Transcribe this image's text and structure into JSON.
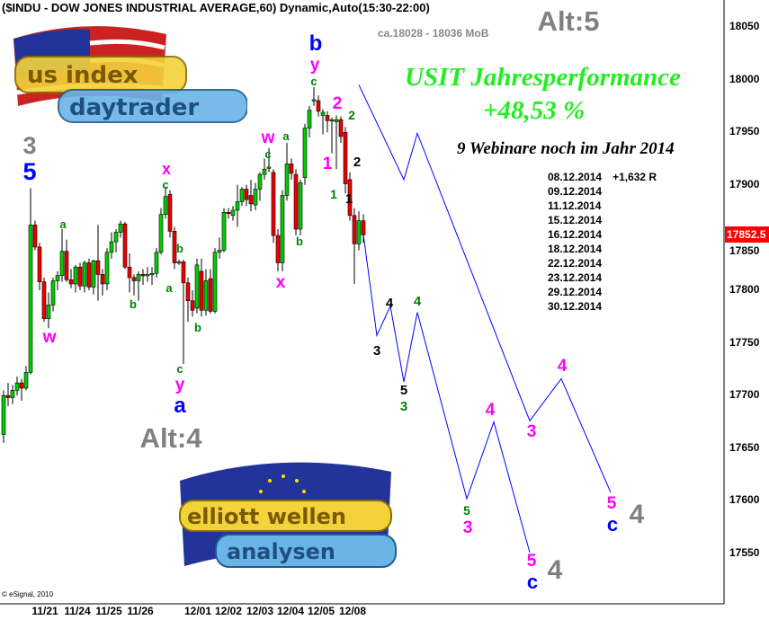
{
  "header": {
    "title": "($INDU - DOW JONES INDUSTRIAL AVERAGE,60) Dynamic,Auto(15:30-22:00)"
  },
  "annotations": {
    "mob": "ca.18028 - 18036 MoB",
    "performance_title": "USIT Jahresperformance",
    "performance_value": "+48,53 %",
    "webinar_note": "9 Webinare noch im Jahr 2014",
    "webinar_dates": [
      "08.12.2014",
      "09.12.2014",
      "11.12.2014",
      "15.12.2014",
      "16.12.2014",
      "18.12.2014",
      "22.12.2014",
      "23.12.2014",
      "29.12.2014",
      "30.12.2014"
    ],
    "webinar_result": "+1,632 R",
    "copyright": "© eSignal, 2010"
  },
  "logos": {
    "top": "us index daytrader",
    "bottom": "elliott wellen analysen"
  },
  "colors": {
    "up": "#00cc00",
    "down": "#ee0000",
    "projection": "#0000ff",
    "price_box": "#ff0000",
    "magenta": "#ff00ff",
    "green": "#008000",
    "blue": "#0000ff",
    "gray": "#808080",
    "black": "#000000"
  },
  "chart_data": {
    "type": "candlestick",
    "title": "($INDU - DOW JONES INDUSTRIAL AVERAGE,60) Dynamic,Auto(15:30-22:00)",
    "ylim": [
      17510,
      18075
    ],
    "y_ticks": [
      18050,
      18000,
      17950,
      17900,
      17850,
      17800,
      17750,
      17700,
      17650,
      17600,
      17550
    ],
    "x_tick_labels": [
      "11/21",
      "11/24",
      "11/25",
      "11/26",
      "12/01",
      "12/02",
      "12/03",
      "12/04",
      "12/05",
      "12/08"
    ],
    "last_price": "17852.5",
    "ohlc": [
      [
        17663,
        17705,
        17655,
        17700
      ],
      [
        17700,
        17712,
        17690,
        17698
      ],
      [
        17698,
        17710,
        17692,
        17705
      ],
      [
        17705,
        17718,
        17700,
        17712
      ],
      [
        17712,
        17716,
        17695,
        17707
      ],
      [
        17707,
        17728,
        17705,
        17722
      ],
      [
        17722,
        17897,
        17720,
        17862
      ],
      [
        17862,
        17866,
        17838,
        17841
      ],
      [
        17841,
        17845,
        17800,
        17808
      ],
      [
        17808,
        17812,
        17770,
        17773
      ],
      [
        17773,
        17798,
        17764,
        17786
      ],
      [
        17786,
        17812,
        17780,
        17809
      ],
      [
        17809,
        17818,
        17800,
        17814
      ],
      [
        17814,
        17858,
        17808,
        17837
      ],
      [
        17837,
        17848,
        17808,
        17810
      ],
      [
        17810,
        17820,
        17802,
        17806
      ],
      [
        17806,
        17824,
        17798,
        17822
      ],
      [
        17822,
        17826,
        17800,
        17804
      ],
      [
        17804,
        17828,
        17798,
        17826
      ],
      [
        17826,
        17830,
        17800,
        17803
      ],
      [
        17803,
        17829,
        17796,
        17828
      ],
      [
        17828,
        17862,
        17790,
        17815
      ],
      [
        17815,
        17820,
        17795,
        17806
      ],
      [
        17806,
        17840,
        17800,
        17836
      ],
      [
        17836,
        17855,
        17830,
        17846
      ],
      [
        17846,
        17858,
        17836,
        17855
      ],
      [
        17855,
        17866,
        17850,
        17863
      ],
      [
        17863,
        17865,
        17820,
        17822
      ],
      [
        17822,
        17835,
        17798,
        17812
      ],
      [
        17812,
        17815,
        17795,
        17809
      ],
      [
        17809,
        17818,
        17790,
        17815
      ],
      [
        17815,
        17820,
        17805,
        17814
      ],
      [
        17814,
        17822,
        17808,
        17815
      ],
      [
        17815,
        17822,
        17805,
        17816
      ],
      [
        17816,
        17840,
        17812,
        17836
      ],
      [
        17836,
        17878,
        17834,
        17872
      ],
      [
        17872,
        17898,
        17868,
        17889
      ],
      [
        17891,
        17895,
        17850,
        17856
      ],
      [
        17856,
        17860,
        17820,
        17826
      ],
      [
        17826,
        17829,
        17824,
        17827
      ],
      [
        17827,
        17829,
        17730,
        17807
      ],
      [
        17807,
        17812,
        17770,
        17790
      ],
      [
        17790,
        17800,
        17775,
        17781
      ],
      [
        17783,
        17830,
        17778,
        17824
      ],
      [
        17818,
        17830,
        17775,
        17781
      ],
      [
        17781,
        17820,
        17776,
        17809
      ],
      [
        17811,
        17820,
        17778,
        17780
      ],
      [
        17780,
        17840,
        17778,
        17836
      ],
      [
        17836,
        17850,
        17830,
        17838
      ],
      [
        17838,
        17878,
        17836,
        17874
      ],
      [
        17874,
        17878,
        17868,
        17873
      ],
      [
        17871,
        17880,
        17866,
        17876
      ],
      [
        17876,
        17900,
        17860,
        17884
      ],
      [
        17884,
        17898,
        17880,
        17896
      ],
      [
        17896,
        17900,
        17880,
        17886
      ],
      [
        17890,
        17905,
        17875,
        17882
      ],
      [
        17881,
        17902,
        17876,
        17896
      ],
      [
        17896,
        17912,
        17885,
        17910
      ],
      [
        17910,
        17925,
        17905,
        17915
      ],
      [
        17917,
        17935,
        17912,
        17917
      ],
      [
        17912,
        17915,
        17845,
        17852
      ],
      [
        17852,
        17858,
        17818,
        17826
      ],
      [
        17826,
        17895,
        17818,
        17890
      ],
      [
        17890,
        17940,
        17885,
        17920
      ],
      [
        17920,
        17925,
        17905,
        17911
      ],
      [
        17910,
        17915,
        17852,
        17858
      ],
      [
        17858,
        17905,
        17852,
        17902
      ],
      [
        17907,
        17958,
        17900,
        17954
      ],
      [
        17954,
        17975,
        17945,
        17971
      ],
      [
        17980,
        17993,
        17975,
        17981
      ],
      [
        17980,
        17985,
        17965,
        17970
      ],
      [
        17966,
        17972,
        17948,
        17969
      ],
      [
        17966,
        17970,
        17950,
        17961
      ],
      [
        17962,
        17964,
        17930,
        17962
      ],
      [
        17960,
        17966,
        17915,
        17962
      ],
      [
        17962,
        17965,
        17940,
        17946
      ],
      [
        17950,
        17955,
        17892,
        17901
      ],
      [
        17905,
        17912,
        17866,
        17871
      ],
      [
        17871,
        17878,
        17806,
        17844
      ],
      [
        17844,
        17875,
        17838,
        17866
      ],
      [
        17866,
        17872,
        17845,
        17852.5
      ]
    ],
    "projections": [
      {
        "bars": [
          79,
          89,
          92,
          117,
          124,
          135
        ],
        "prices": [
          17995,
          17905,
          17949,
          17676,
          17716,
          17608
        ]
      },
      {
        "bars": [
          80,
          83,
          86,
          89,
          92,
          103,
          109,
          117
        ],
        "prices": [
          17853,
          17757,
          17785,
          17713,
          17779,
          17602,
          17675,
          17551
        ]
      }
    ],
    "wave_labels": [
      {
        "text": "3",
        "color": "gray"
      },
      {
        "text": "5",
        "color": "blue"
      },
      {
        "text": "a",
        "color": "green"
      },
      {
        "text": "w",
        "color": "magenta"
      },
      {
        "text": "x",
        "color": "magenta"
      },
      {
        "text": "c",
        "color": "green"
      },
      {
        "text": "b",
        "color": "green"
      },
      {
        "text": "a",
        "color": "green"
      },
      {
        "text": "b",
        "color": "green"
      },
      {
        "text": "b",
        "color": "green"
      },
      {
        "text": "c",
        "color": "green"
      },
      {
        "text": "y",
        "color": "magenta"
      },
      {
        "text": "a",
        "color": "blue"
      },
      {
        "text": "w",
        "color": "magenta"
      },
      {
        "text": "c",
        "color": "green"
      },
      {
        "text": "a",
        "color": "green"
      },
      {
        "text": "x",
        "color": "magenta"
      },
      {
        "text": "b",
        "color": "green"
      },
      {
        "text": "b",
        "color": "blue"
      },
      {
        "text": "y",
        "color": "magenta"
      },
      {
        "text": "c",
        "color": "green"
      },
      {
        "text": "2",
        "color": "magenta"
      },
      {
        "text": "2",
        "color": "green"
      },
      {
        "text": "1",
        "color": "magenta"
      },
      {
        "text": "2",
        "color": "black"
      },
      {
        "text": "1",
        "color": "green"
      },
      {
        "text": "1",
        "color": "black"
      },
      {
        "text": "4",
        "color": "black"
      },
      {
        "text": "4",
        "color": "green"
      },
      {
        "text": "3",
        "color": "black"
      },
      {
        "text": "5",
        "color": "black"
      },
      {
        "text": "3",
        "color": "green"
      },
      {
        "text": "4",
        "color": "magenta"
      },
      {
        "text": "5",
        "color": "green"
      },
      {
        "text": "3",
        "color": "magenta"
      },
      {
        "text": "5",
        "color": "magenta"
      },
      {
        "text": "c",
        "color": "blue"
      },
      {
        "text": "4",
        "color": "gray"
      },
      {
        "text": "4",
        "color": "magenta"
      },
      {
        "text": "3",
        "color": "magenta"
      },
      {
        "text": "5",
        "color": "magenta"
      },
      {
        "text": "c",
        "color": "blue"
      },
      {
        "text": "4",
        "color": "gray"
      },
      {
        "text": "Alt:5",
        "color": "gray"
      },
      {
        "text": "Alt:4",
        "color": "gray"
      }
    ]
  }
}
